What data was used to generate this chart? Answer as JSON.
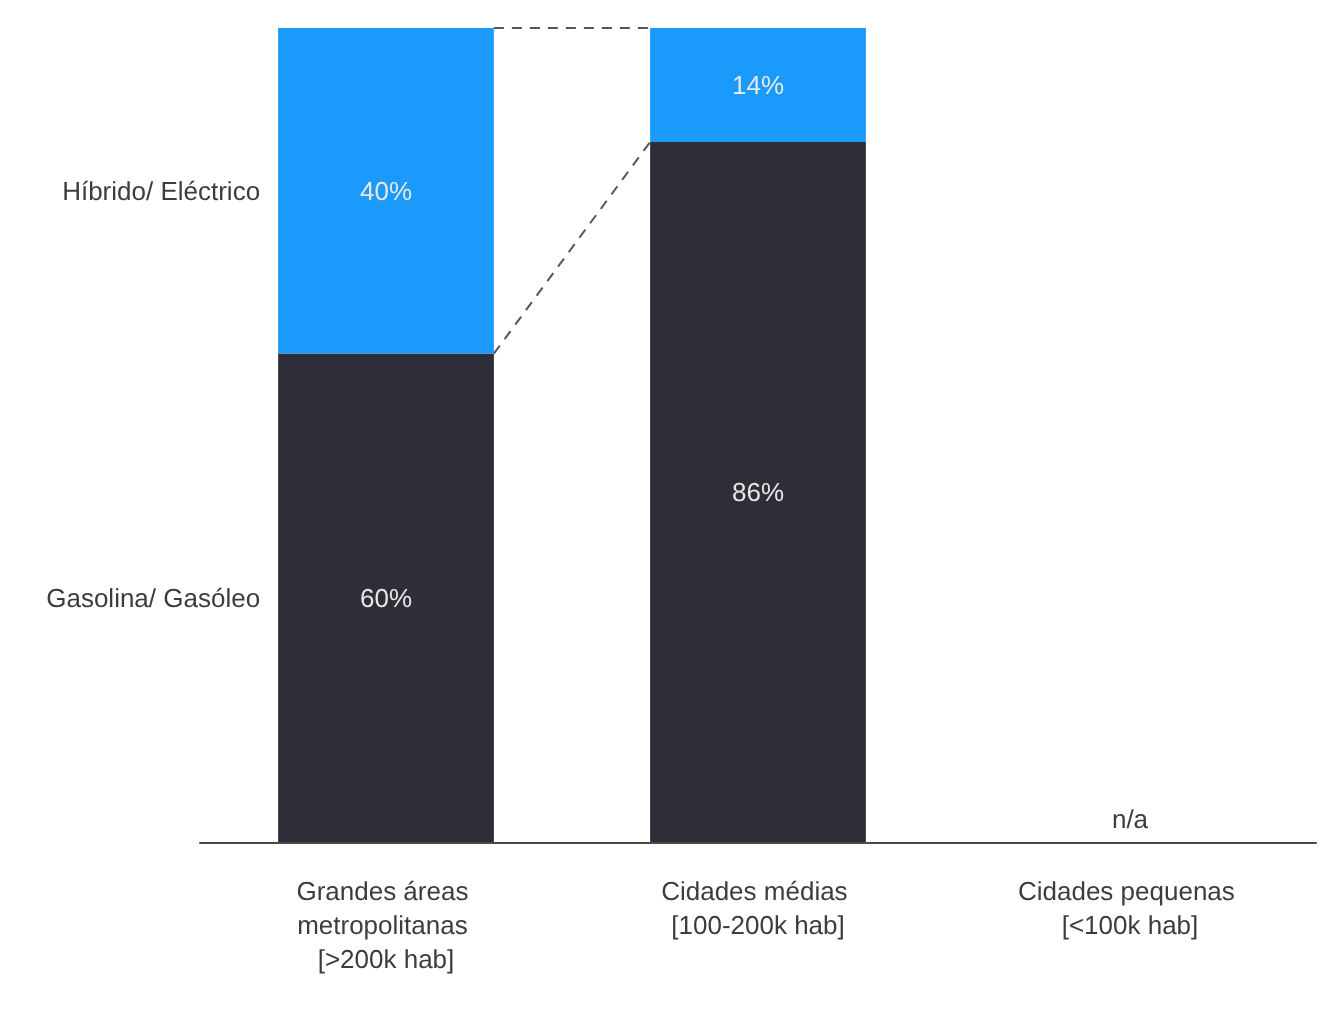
{
  "chart_data": {
    "type": "bar",
    "stacked": true,
    "categories": [
      "Grandes áreas metropolitanas [>200k hab]",
      "Cidades médias [100-200k hab]",
      "Cidades pequenas [<100k hab]"
    ],
    "series": [
      {
        "name": "Gasolina/ Gasóleo",
        "color": "#2e2e38",
        "values": [
          60,
          86,
          null
        ],
        "value_labels": [
          "60%",
          "86%",
          null
        ]
      },
      {
        "name": "Híbrido/ Eléctrico",
        "color": "#1a9afa",
        "values": [
          40,
          14,
          null
        ],
        "value_labels": [
          "40%",
          "14%",
          null
        ]
      }
    ],
    "annotations": [
      "n/a"
    ]
  }
}
